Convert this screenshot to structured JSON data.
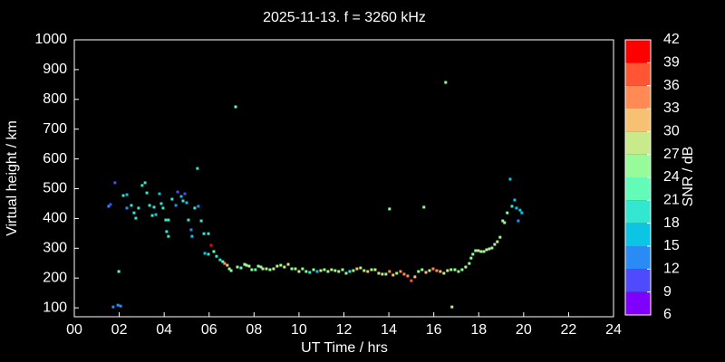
{
  "chart_data": {
    "type": "scatter",
    "title": "2025-11-13. f = 3260 kHz",
    "xlabel": "UT Time / hrs",
    "ylabel": "Virtual height / km",
    "xlim": [
      0,
      24
    ],
    "ylim": [
      70,
      1000
    ],
    "xticks": [
      {
        "value": 0,
        "label": "00"
      },
      {
        "value": 2,
        "label": "02"
      },
      {
        "value": 4,
        "label": "04"
      },
      {
        "value": 6,
        "label": "06"
      },
      {
        "value": 8,
        "label": "08"
      },
      10,
      12,
      14,
      16,
      18,
      20,
      22,
      24
    ],
    "yticks": [
      100,
      200,
      300,
      400,
      500,
      600,
      700,
      800,
      900,
      1000
    ],
    "colorbar": {
      "label": "SNR / dB",
      "ticks": [
        6,
        9,
        12,
        15,
        18,
        21,
        24,
        27,
        30,
        33,
        36,
        39,
        42
      ],
      "colors": [
        "#8000ff",
        "#4f4afc",
        "#2a8bf5",
        "#0cc4e4",
        "#33e6d0",
        "#62fbb8",
        "#98fb9a",
        "#c9ea8a",
        "#f6c173",
        "#ff8a55",
        "#ff5533",
        "#ff0000"
      ]
    },
    "x": [
      1.53,
      1.61,
      1.81,
      1.73,
      1.94,
      2.06,
      1.98,
      2.18,
      2.34,
      2.34,
      2.54,
      2.66,
      2.74,
      2.86,
      3.02,
      3.15,
      3.23,
      3.35,
      3.47,
      3.55,
      3.63,
      3.79,
      3.87,
      3.95,
      4.07,
      4.19,
      4.11,
      4.19,
      4.35,
      4.52,
      4.6,
      4.76,
      4.84,
      4.92,
      5.0,
      5.08,
      5.2,
      5.24,
      5.36,
      5.48,
      5.52,
      5.65,
      5.77,
      5.97,
      5.81,
      5.97,
      6.09,
      6.21,
      6.33,
      6.49,
      6.61,
      6.69,
      6.81,
      6.9,
      6.98,
      7.18,
      7.26,
      7.42,
      7.58,
      7.66,
      7.78,
      7.9,
      8.06,
      8.19,
      8.31,
      8.39,
      8.55,
      8.71,
      8.87,
      9.03,
      9.19,
      9.35,
      9.52,
      9.68,
      9.84,
      10.0,
      10.16,
      10.32,
      10.48,
      10.65,
      10.81,
      10.97,
      11.13,
      11.29,
      11.45,
      11.61,
      11.77,
      11.94,
      12.1,
      12.26,
      12.42,
      12.58,
      12.74,
      12.9,
      13.06,
      13.23,
      13.39,
      13.55,
      13.71,
      13.87,
      14.03,
      14.03,
      14.19,
      14.35,
      14.52,
      14.68,
      14.84,
      15.0,
      15.16,
      15.32,
      15.48,
      15.56,
      15.65,
      15.81,
      15.97,
      16.13,
      16.29,
      16.45,
      16.53,
      16.61,
      16.77,
      16.81,
      16.94,
      17.1,
      17.26,
      17.42,
      17.58,
      17.66,
      17.74,
      17.86,
      17.98,
      18.1,
      18.23,
      18.35,
      18.47,
      18.59,
      18.71,
      18.83,
      18.95,
      19.07,
      19.15,
      19.27,
      19.4,
      19.48,
      19.6,
      19.68,
      19.76,
      19.84,
      19.92
    ],
    "y": [
      441,
      447,
      520,
      103,
      109,
      106,
      222,
      477,
      480,
      435,
      444,
      419,
      401,
      435,
      511,
      520,
      486,
      444,
      410,
      438,
      413,
      483,
      450,
      435,
      395,
      395,
      356,
      340,
      465,
      444,
      489,
      474,
      459,
      483,
      453,
      395,
      362,
      340,
      435,
      568,
      441,
      392,
      349,
      349,
      283,
      280,
      310,
      289,
      273,
      261,
      255,
      249,
      243,
      231,
      225,
      775,
      237,
      234,
      246,
      243,
      240,
      228,
      228,
      240,
      237,
      231,
      231,
      228,
      231,
      240,
      243,
      237,
      246,
      231,
      231,
      222,
      231,
      222,
      219,
      228,
      222,
      225,
      228,
      222,
      228,
      225,
      222,
      228,
      216,
      222,
      225,
      231,
      234,
      225,
      222,
      228,
      228,
      216,
      213,
      213,
      222,
      432,
      210,
      216,
      222,
      213,
      207,
      191,
      204,
      222,
      228,
      438,
      219,
      225,
      231,
      225,
      222,
      216,
      857,
      225,
      228,
      103,
      228,
      222,
      228,
      237,
      249,
      267,
      280,
      292,
      292,
      289,
      289,
      295,
      298,
      301,
      313,
      322,
      337,
      392,
      386,
      419,
      532,
      441,
      462,
      435,
      392,
      428,
      419
    ],
    "snr": [
      12,
      10,
      11,
      12,
      14,
      14,
      21,
      18,
      15,
      14,
      18,
      18,
      18,
      20,
      18,
      18,
      20,
      18,
      18,
      18,
      16,
      16,
      18,
      18,
      18,
      18,
      20,
      18,
      18,
      14,
      10,
      15,
      18,
      9,
      15,
      18,
      14,
      15,
      18,
      19,
      14,
      18,
      20,
      18,
      16,
      18,
      39,
      22,
      19,
      20,
      21,
      33,
      31,
      26,
      25,
      21,
      26,
      22,
      26,
      26,
      28,
      26,
      21,
      24,
      26,
      27,
      26,
      25,
      27,
      28,
      26,
      29,
      27,
      26,
      25,
      27,
      26,
      24,
      20,
      25,
      16,
      27,
      25,
      24,
      27,
      25,
      28,
      26,
      24,
      20,
      26,
      30,
      28,
      26,
      32,
      25,
      28,
      27,
      29,
      26,
      34,
      24,
      30,
      26,
      35,
      33,
      34,
      36,
      31,
      24,
      26,
      26,
      30,
      29,
      33,
      34,
      31,
      29,
      24,
      28,
      26,
      27,
      25,
      26,
      25,
      27,
      26,
      24,
      25,
      26,
      27,
      26,
      25,
      27,
      26,
      26,
      26,
      27,
      25,
      24,
      26,
      24,
      16,
      18,
      17,
      16,
      12,
      15,
      16
    ]
  }
}
